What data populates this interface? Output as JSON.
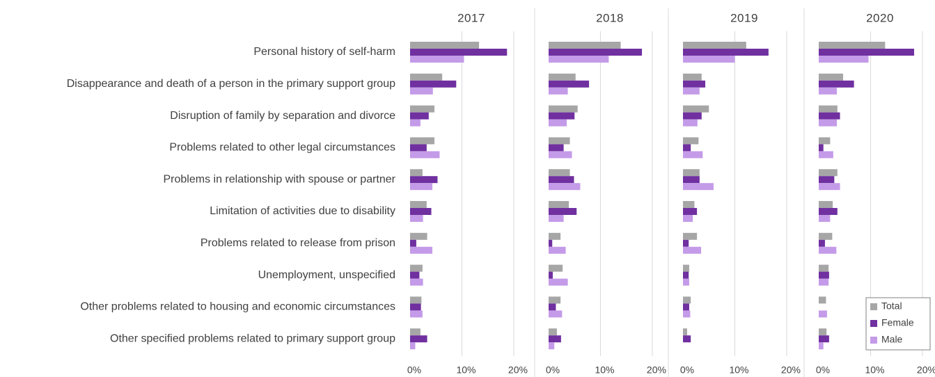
{
  "chart_data": {
    "type": "bar",
    "orientation": "horizontal",
    "categories": [
      "Personal history of self-harm",
      "Disappearance and death of a person in the primary support group",
      "Disruption of family by separation and divorce",
      "Problems related to other legal circumstances",
      "Problems in relationship with spouse or partner",
      "Limitation of activities due to disability",
      "Problems related to release from prison",
      "Unemployment, unspecified",
      "Other problems related to housing and economic circumstances",
      "Other specified problems related to primary support group"
    ],
    "series": [
      {
        "name": "Total",
        "color": "#a6a6a6"
      },
      {
        "name": "Female",
        "color": "#7030a0"
      },
      {
        "name": "Male",
        "color": "#c49be8"
      }
    ],
    "legend": "bottom-right",
    "grid": true,
    "panels": [
      {
        "title": "2017",
        "xlim": [
          0,
          23.5
        ],
        "xticks": [
          {
            "value": 0,
            "label": "0%"
          },
          {
            "value": 10,
            "label": "10%"
          },
          {
            "value": 20,
            "label": "20%"
          }
        ],
        "values": [
          [
            13.3,
            6.2,
            4.7,
            4.7,
            2.4,
            3.2,
            3.3,
            2.4,
            2.2,
            2.0
          ],
          [
            18.7,
            8.9,
            3.6,
            3.2,
            5.3,
            4.1,
            1.2,
            1.8,
            2.1,
            3.3
          ],
          [
            10.4,
            4.4,
            2.0,
            5.7,
            4.3,
            2.5,
            4.3,
            2.5,
            2.4,
            1.0
          ]
        ]
      },
      {
        "title": "2018",
        "xlim": [
          0,
          23.5
        ],
        "xticks": [
          {
            "value": 0,
            "label": "0%"
          },
          {
            "value": 10,
            "label": "10%"
          },
          {
            "value": 20,
            "label": "20%"
          }
        ],
        "values": [
          [
            13.9,
            5.2,
            5.6,
            4.1,
            4.1,
            3.9,
            2.3,
            2.7,
            2.3,
            1.6
          ],
          [
            18.0,
            7.8,
            5.0,
            2.9,
            4.9,
            5.4,
            0.7,
            0.8,
            1.4,
            2.4
          ],
          [
            11.6,
            3.7,
            3.5,
            4.5,
            6.1,
            2.9,
            3.3,
            3.7,
            2.6,
            1.1
          ]
        ]
      },
      {
        "title": "2019",
        "xlim": [
          0,
          23.5
        ],
        "xticks": [
          {
            "value": 0,
            "label": "0%"
          },
          {
            "value": 10,
            "label": "10%"
          },
          {
            "value": 20,
            "label": "20%"
          }
        ],
        "values": [
          [
            12.2,
            3.6,
            5.0,
            3.0,
            3.2,
            2.2,
            2.7,
            1.2,
            1.5,
            0.8
          ],
          [
            16.5,
            4.3,
            3.6,
            1.5,
            3.2,
            2.7,
            1.1,
            1.1,
            1.2,
            1.5
          ],
          [
            10.0,
            3.2,
            2.8,
            3.8,
            5.9,
            1.9,
            3.5,
            1.2,
            1.4,
            0
          ]
        ]
      },
      {
        "title": "2020",
        "xlim": [
          0,
          23.5
        ],
        "xticks": [
          {
            "value": 0,
            "label": "0%"
          },
          {
            "value": 10,
            "label": "10%"
          },
          {
            "value": 20,
            "label": "20%"
          }
        ],
        "values": [
          [
            12.8,
            4.7,
            3.6,
            2.2,
            3.6,
            2.7,
            2.6,
            1.9,
            1.4,
            1.5
          ],
          [
            18.4,
            6.8,
            4.1,
            0.9,
            3.0,
            3.6,
            1.2,
            2.0,
            0,
            2.0
          ],
          [
            9.6,
            3.5,
            3.5,
            2.8,
            4.1,
            2.2,
            3.4,
            1.9,
            1.6,
            0.9
          ]
        ]
      }
    ]
  }
}
